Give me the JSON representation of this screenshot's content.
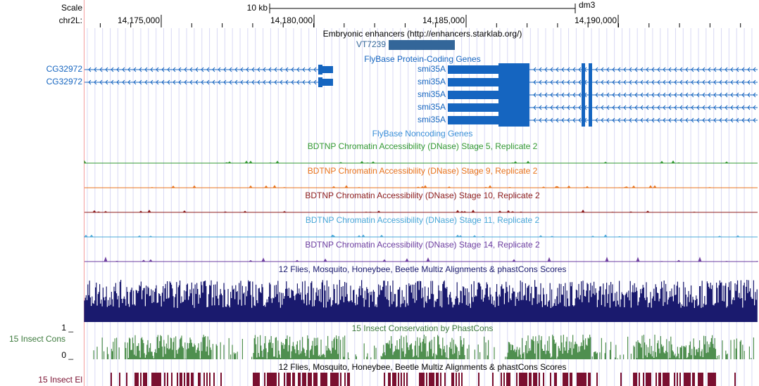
{
  "scale_bar": {
    "label": "Scale",
    "length": "10 kb",
    "assembly": "dm3"
  },
  "position": {
    "chrom": "chr2L:",
    "ticks": [
      "14,175,000",
      "14,180,000",
      "14,185,000",
      "14,190,000"
    ]
  },
  "enhancers": {
    "title": "Embryonic enhancers (http://enhancers.starklab.org/)",
    "item": "VT7239"
  },
  "genes": {
    "title": "FlyBase Protein-Coding Genes",
    "left": [
      "CG32972",
      "CG32972"
    ],
    "right": [
      "smi35A",
      "smi35A",
      "smi35A",
      "smi35A",
      "smi35A"
    ]
  },
  "noncoding": {
    "title": "FlyBase Noncoding Genes"
  },
  "dnase": [
    {
      "title": "BDTNP Chromatin Accessibility (DNase) Stage 5, Replicate 2",
      "color": "#339933"
    },
    {
      "title": "BDTNP Chromatin Accessibility (DNase) Stage 9, Replicate 2",
      "color": "#e8731c"
    },
    {
      "title": "BDTNP Chromatin Accessibility (DNase) Stage 10, Replicate 2",
      "color": "#8b1a1a"
    },
    {
      "title": "BDTNP Chromatin Accessibility (DNase) Stage 11, Replicate 2",
      "color": "#4aa8d8"
    },
    {
      "title": "BDTNP Chromatin Accessibility (DNase) Stage 14, Replicate 2",
      "color": "#6e3fa0"
    }
  ],
  "multiz": {
    "title": "12 Flies, Mosquito, Honeybee, Beetle Multiz Alignments & phastCons Scores"
  },
  "cons": {
    "label": "15 Insect Cons",
    "title": "15 Insect Conservation by PhastCons",
    "max": "1 _",
    "min": "0 _"
  },
  "elements": {
    "title": "12 Flies, Mosquito, Honeybee, Beetle Multiz Alignments & phastCons Scores",
    "label": "15 Insect El"
  }
}
